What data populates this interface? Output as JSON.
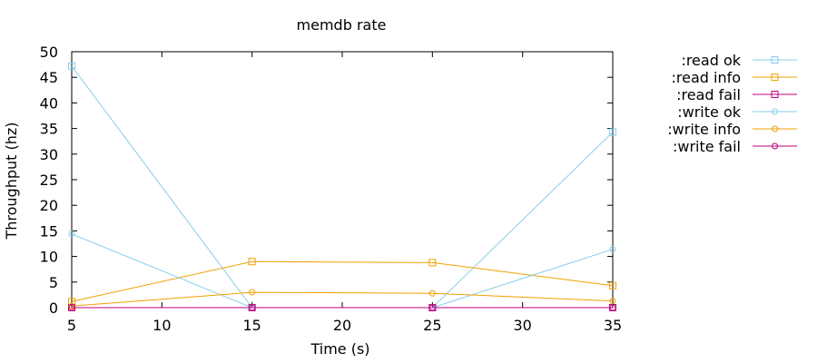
{
  "chart_data": {
    "type": "line",
    "title": "memdb rate",
    "xlabel": "Time (s)",
    "ylabel": "Throughput (hz)",
    "xlim": [
      5,
      35
    ],
    "ylim": [
      0,
      50
    ],
    "xticks": [
      5,
      10,
      15,
      20,
      25,
      30,
      35
    ],
    "yticks": [
      0,
      5,
      10,
      15,
      20,
      25,
      30,
      35,
      40,
      45,
      50
    ],
    "grid": false,
    "legend_position": "right",
    "x": [
      5,
      15,
      25,
      35
    ],
    "series": [
      {
        "name": ":read ok",
        "color": "#87ceeb",
        "marker": "square",
        "values": [
          47.2,
          0,
          0,
          34.3
        ]
      },
      {
        "name": ":read info",
        "color": "#f0a000",
        "marker": "square",
        "values": [
          1.2,
          9.0,
          8.8,
          4.3
        ]
      },
      {
        "name": ":read fail",
        "color": "#c00080",
        "marker": "square",
        "values": [
          0,
          0,
          0,
          0
        ]
      },
      {
        "name": ":write ok",
        "color": "#87ceeb",
        "marker": "circle",
        "values": [
          14.4,
          0,
          0,
          11.4
        ]
      },
      {
        "name": ":write info",
        "color": "#f0a000",
        "marker": "circle",
        "values": [
          0.3,
          3.0,
          2.8,
          1.3
        ]
      },
      {
        "name": ":write fail",
        "color": "#c00080",
        "marker": "circle",
        "values": [
          0,
          0,
          0,
          0
        ]
      }
    ]
  }
}
